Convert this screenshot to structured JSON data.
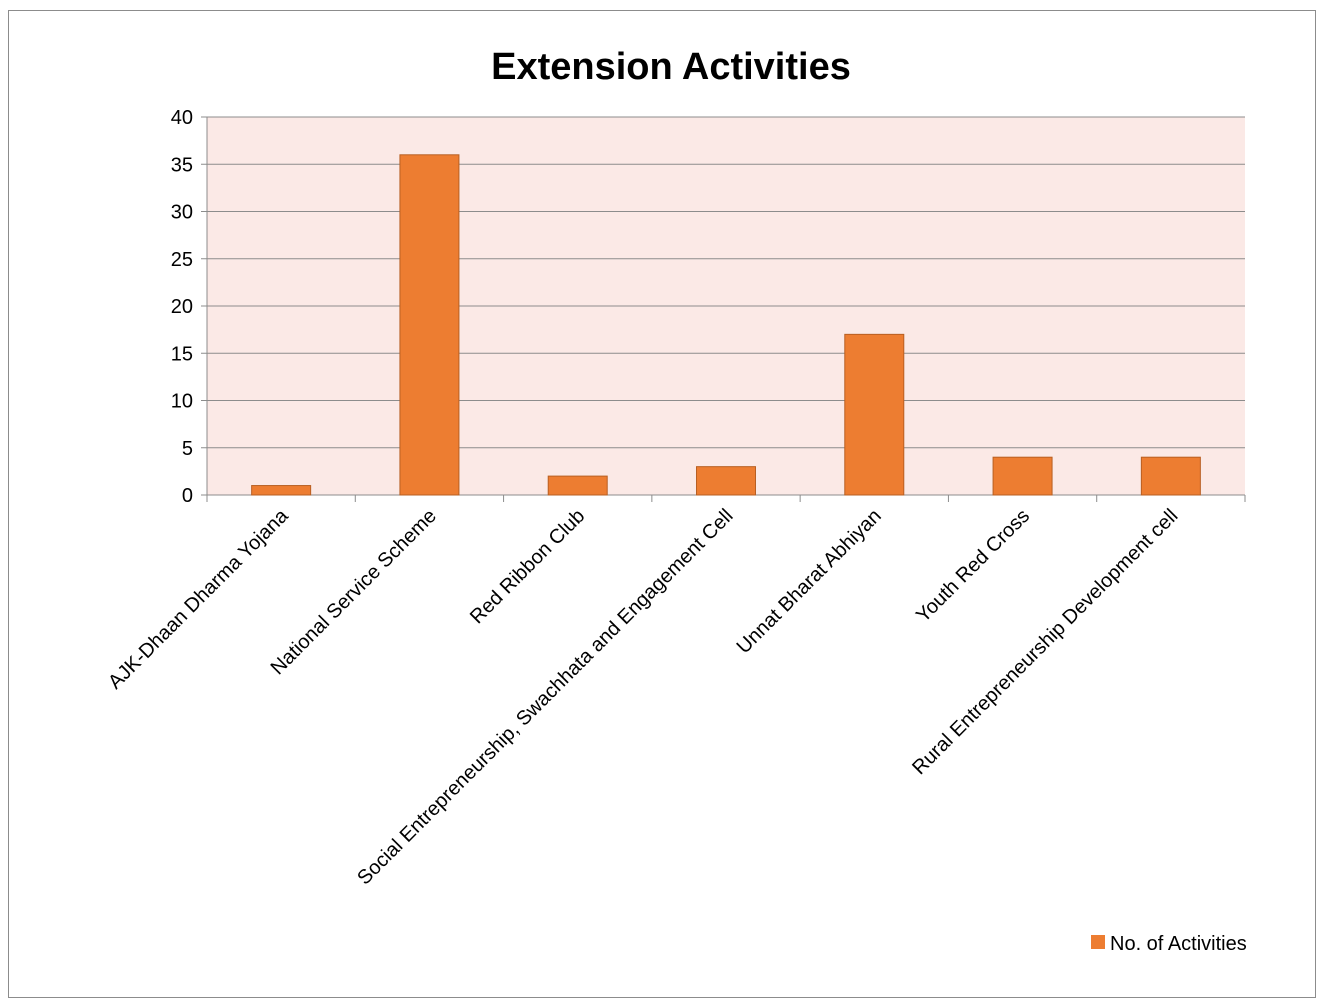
{
  "chart_data": {
    "type": "bar",
    "title": "Extension Activities",
    "xlabel": "",
    "ylabel": "",
    "categories": [
      "AJK-Dhaan Dharma Yojana",
      "National Service Scheme",
      "Red Ribbon Club",
      "Social Entrepreneurship, Swachhata and Engagement Cell",
      "Unnat Bharat Abhiyan",
      "Youth Red Cross",
      "Rural Entrepreneurship Development cell"
    ],
    "series": [
      {
        "name": "No. of Activities",
        "values": [
          1,
          36,
          2,
          3,
          17,
          4,
          4
        ],
        "color": "#ED7D31"
      }
    ],
    "ylim": [
      0,
      40
    ],
    "yticks": [
      "0",
      "5",
      "10",
      "15",
      "20",
      "25",
      "30",
      "35",
      "40"
    ],
    "grid": true,
    "plot_background": "#FBE9E6",
    "legend_position": "bottom-right"
  }
}
